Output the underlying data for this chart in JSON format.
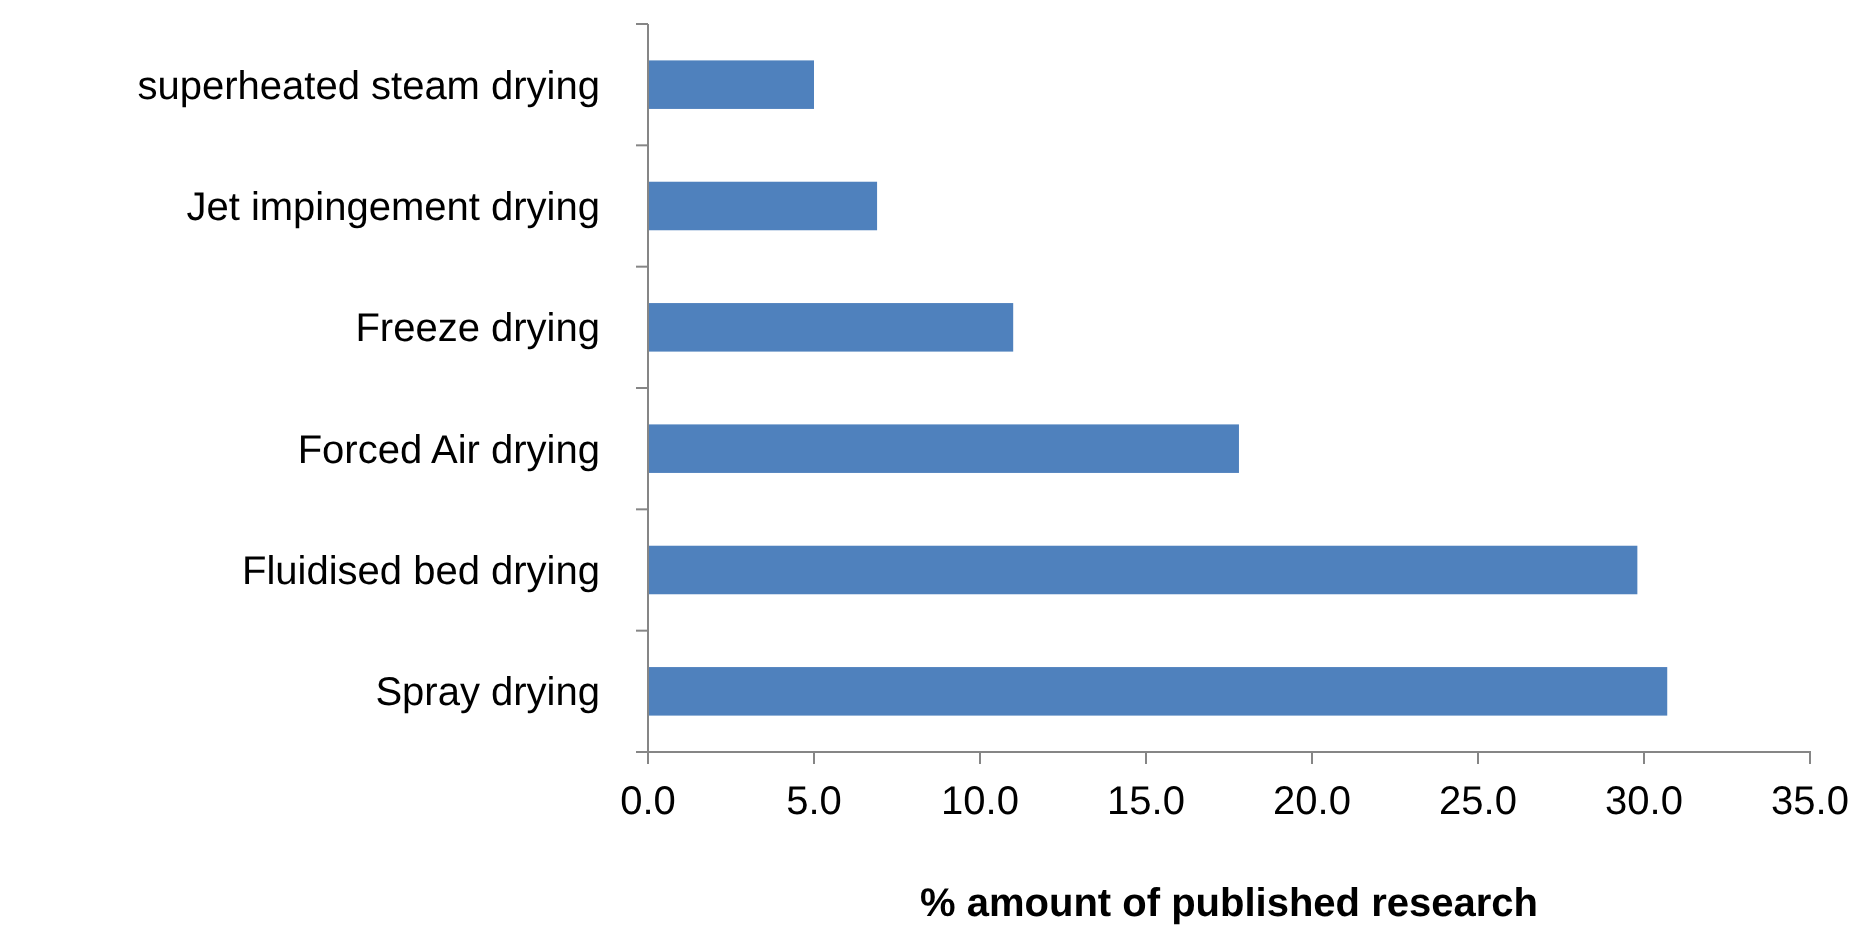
{
  "chart_data": {
    "type": "bar",
    "orientation": "horizontal",
    "xlabel": "% amount of published research",
    "categories": [
      "superheated steam drying",
      "Jet impingement drying",
      "Freeze drying",
      "Forced Air drying",
      "Fluidised bed drying",
      "Spray drying"
    ],
    "values": [
      5.0,
      6.9,
      11.0,
      17.8,
      29.8,
      30.7
    ],
    "color": "#4f81bd",
    "xlim": [
      0,
      35
    ],
    "xticks": [
      {
        "value": 0,
        "label": "0.0"
      },
      {
        "value": 5,
        "label": "5.0"
      },
      {
        "value": 10,
        "label": "10.0"
      },
      {
        "value": 15,
        "label": "15.0"
      },
      {
        "value": 20,
        "label": "20.0"
      },
      {
        "value": 25,
        "label": "25.0"
      },
      {
        "value": 30,
        "label": "30.0"
      },
      {
        "value": 35,
        "label": "35.0"
      }
    ],
    "grid": false
  }
}
